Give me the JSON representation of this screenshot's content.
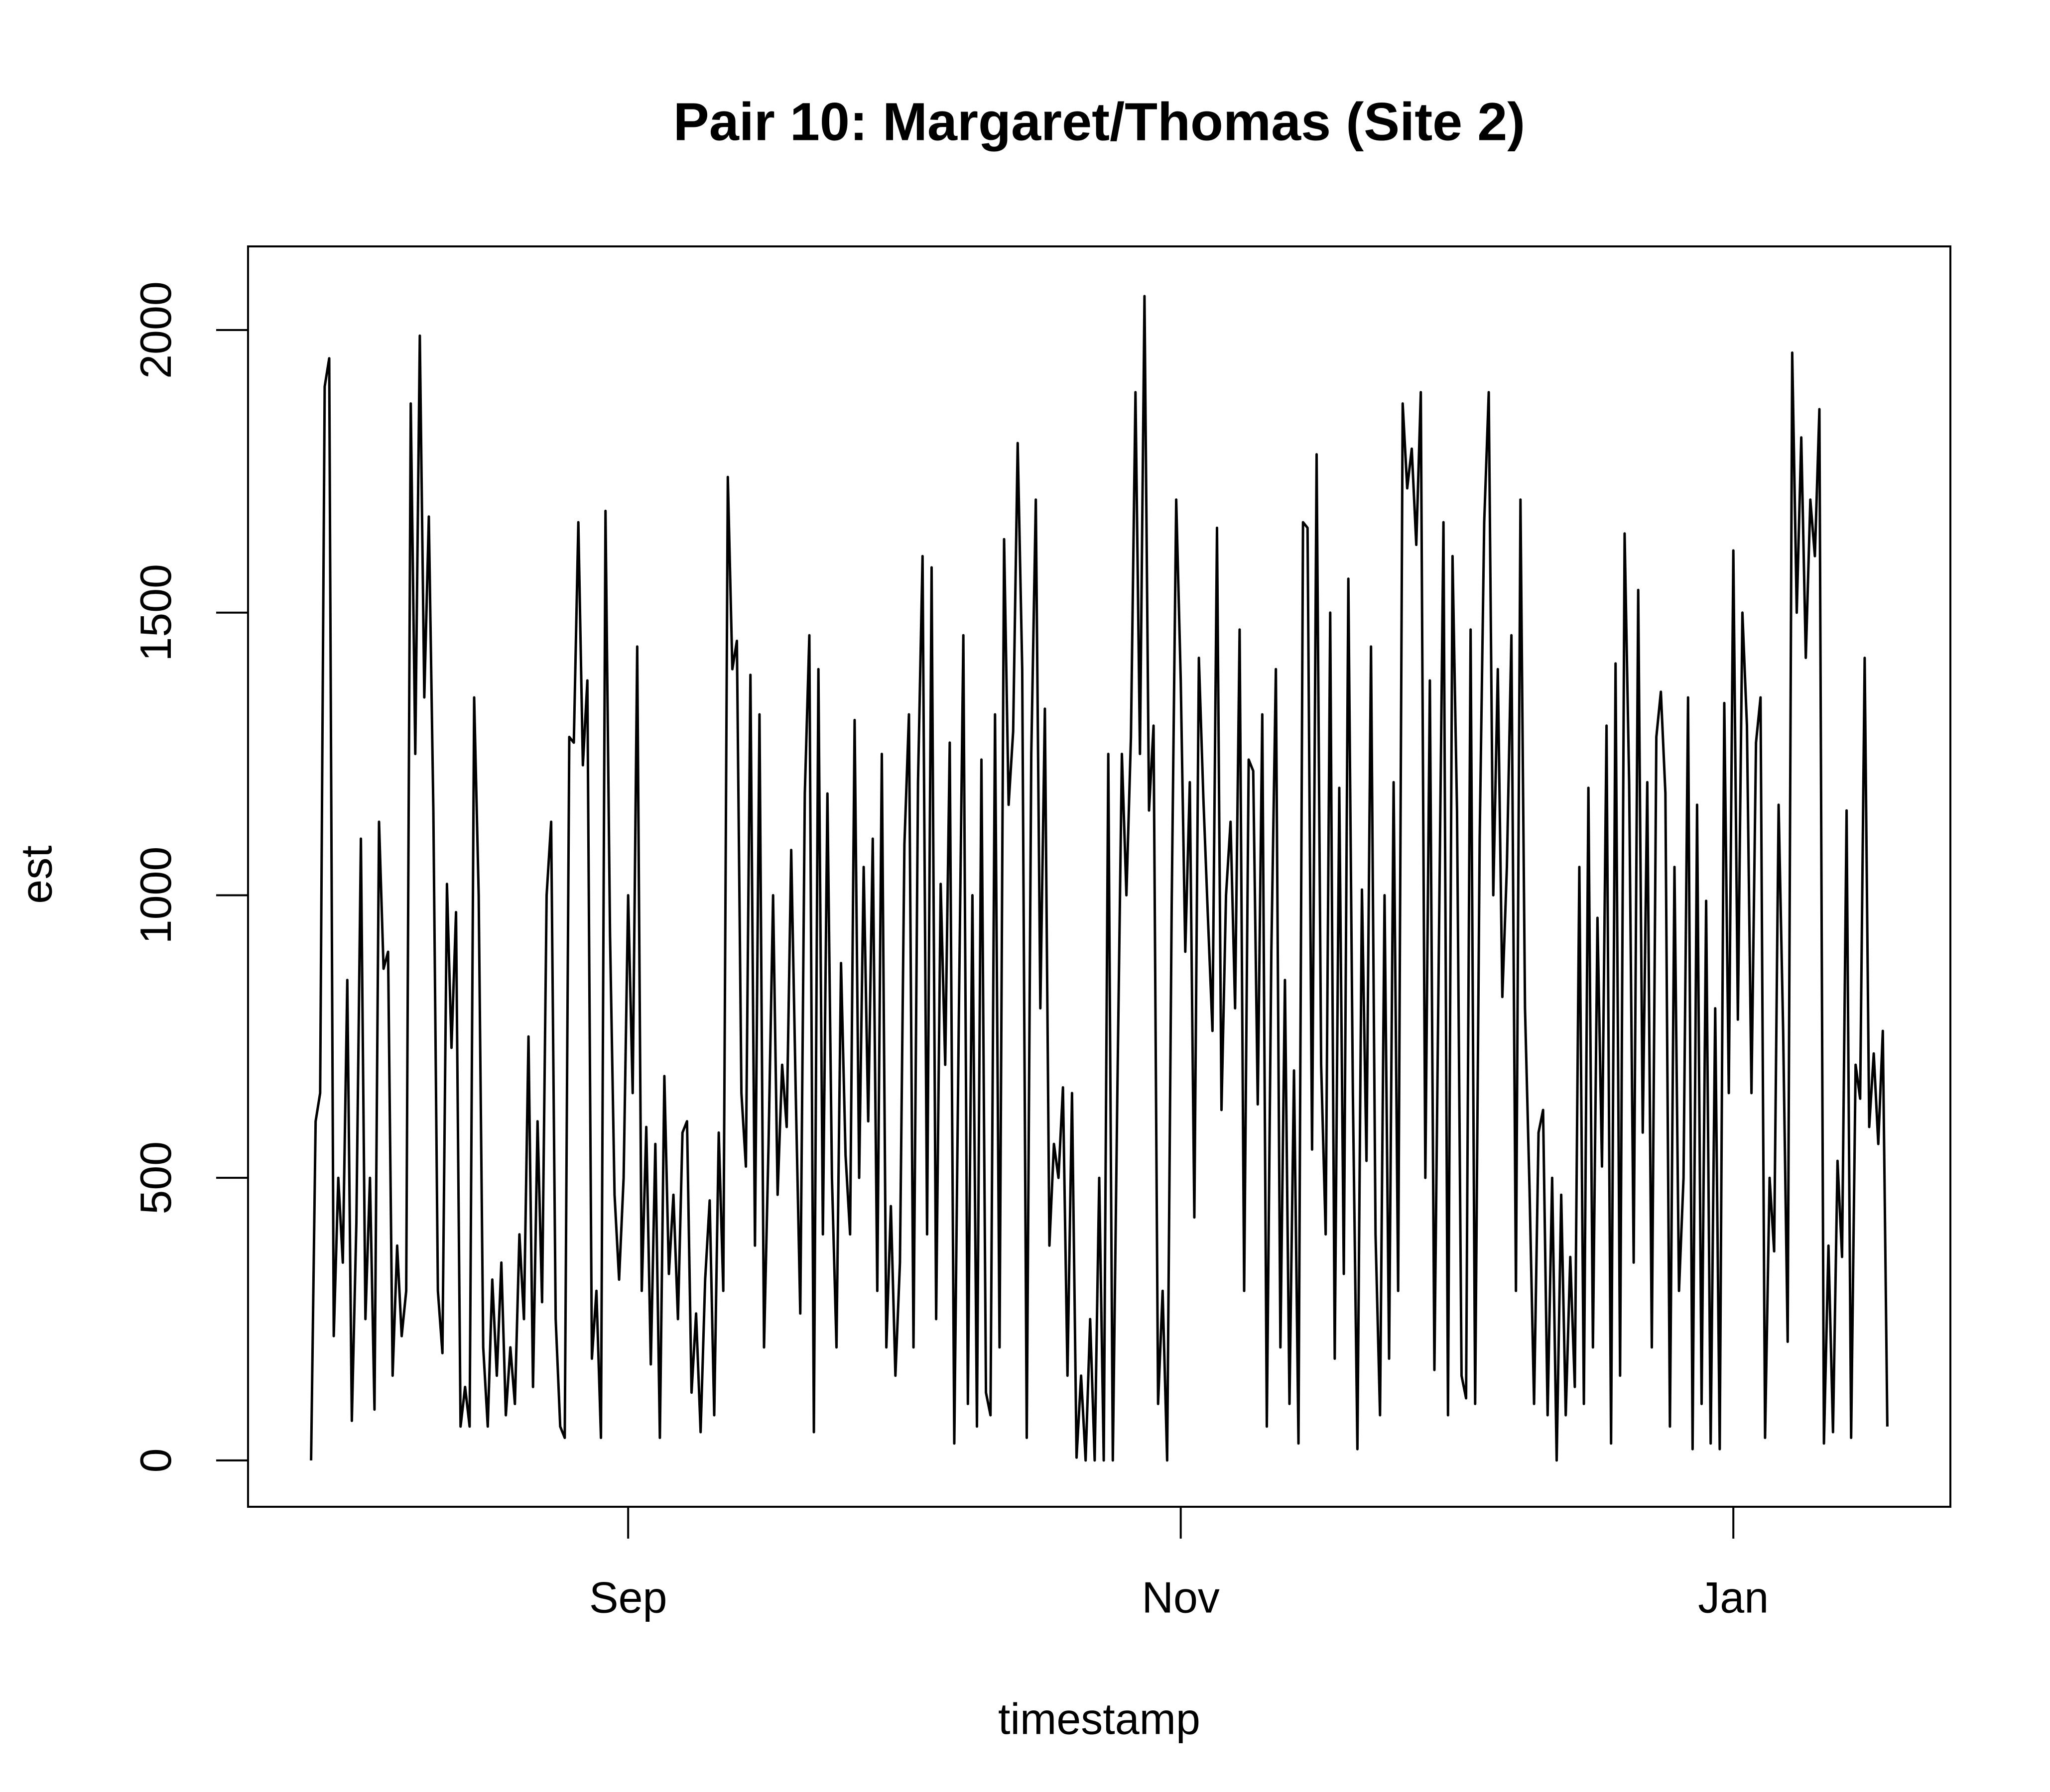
{
  "chart_data": {
    "type": "line",
    "title": "Pair 10: Margaret/Thomas (Site 2)",
    "x_label": "timestamp",
    "y_label": "est",
    "color": "#000000",
    "categories": [
      null,
      null,
      null,
      null,
      null,
      null,
      null,
      null,
      null,
      null,
      null,
      null,
      null,
      null,
      null,
      null,
      null,
      null,
      null,
      null,
      null,
      null,
      null,
      null,
      null,
      null,
      null,
      null,
      null,
      null,
      null,
      null,
      null,
      null,
      null,
      null,
      null,
      null,
      null,
      null,
      null,
      null,
      null,
      null,
      null,
      null,
      null,
      null,
      null,
      null,
      null,
      null,
      null,
      null,
      null,
      null,
      null,
      null,
      null,
      null,
      null,
      null,
      null,
      null,
      null,
      null,
      null,
      null,
      null,
      null,
      "Sep",
      null,
      null,
      null,
      null,
      null,
      null,
      null,
      null,
      null,
      null,
      null,
      null,
      null,
      null,
      null,
      null,
      null,
      null,
      null,
      null,
      null,
      null,
      null,
      null,
      null,
      null,
      null,
      null,
      null,
      null,
      null,
      null,
      null,
      null,
      null,
      null,
      null,
      null,
      null,
      null,
      null,
      null,
      null,
      null,
      null,
      null,
      null,
      null,
      null,
      null,
      null,
      null,
      null,
      null,
      null,
      null,
      null,
      null,
      null,
      null,
      null,
      null,
      null,
      null,
      null,
      null,
      null,
      null,
      null,
      null,
      null,
      null,
      null,
      null,
      null,
      null,
      null,
      null,
      null,
      null,
      null,
      null,
      null,
      null,
      null,
      null,
      null,
      null,
      null,
      null,
      null,
      null,
      null,
      null,
      null,
      null,
      null,
      null,
      null,
      null,
      null,
      null,
      null,
      null,
      null,
      null,
      null,
      null,
      null,
      null,
      null,
      null,
      null,
      null,
      null,
      null,
      null,
      null,
      null,
      null,
      null,
      "Nov",
      null,
      null,
      null,
      null,
      null,
      null,
      null,
      null,
      null,
      null,
      null,
      null,
      null,
      null,
      null,
      null,
      null,
      null,
      null,
      null,
      null,
      null,
      null,
      null,
      null,
      null,
      null,
      null,
      null,
      null,
      null,
      null,
      null,
      null,
      null,
      null,
      null,
      null,
      null,
      null,
      null,
      null,
      null,
      null,
      null,
      null,
      null,
      null,
      null,
      null,
      null,
      null,
      null,
      null,
      null,
      null,
      null,
      null,
      null,
      null,
      null,
      null,
      null,
      null,
      null,
      null,
      null,
      null,
      null,
      null,
      null,
      null,
      null,
      null,
      null,
      null,
      null,
      null,
      null,
      null,
      null,
      null,
      null,
      null,
      null,
      null,
      null,
      null,
      null,
      null,
      null,
      null,
      null,
      null,
      null,
      null,
      null,
      null,
      null,
      null,
      null,
      null,
      null,
      null,
      null,
      null,
      null,
      null,
      null,
      null,
      null,
      null,
      null,
      null,
      null,
      null,
      null,
      null,
      null,
      null,
      null,
      "Jan",
      null,
      null,
      null,
      null,
      null,
      null,
      null,
      null,
      null,
      null,
      null,
      null,
      null,
      null,
      null,
      null,
      null,
      null,
      null,
      null,
      null,
      null,
      null,
      null,
      null,
      null,
      null,
      null,
      null,
      null,
      null,
      null,
      null,
      null
    ],
    "values": [
      0,
      600,
      650,
      1900,
      1950,
      220,
      500,
      350,
      850,
      70,
      420,
      1100,
      250,
      500,
      90,
      1130,
      870,
      900,
      150,
      380,
      220,
      300,
      1870,
      1250,
      1990,
      1350,
      1670,
      1150,
      300,
      190,
      1020,
      730,
      970,
      60,
      130,
      60,
      1350,
      1000,
      200,
      60,
      320,
      150,
      350,
      80,
      200,
      100,
      400,
      250,
      750,
      130,
      600,
      280,
      1000,
      1130,
      250,
      60,
      40,
      1280,
      1270,
      1660,
      1230,
      1380,
      180,
      300,
      40,
      1680,
      930,
      470,
      320,
      500,
      1000,
      650,
      1440,
      300,
      590,
      170,
      560,
      40,
      680,
      330,
      470,
      250,
      580,
      600,
      120,
      260,
      50,
      320,
      460,
      80,
      580,
      300,
      1740,
      1400,
      1450,
      650,
      520,
      1390,
      380,
      1320,
      200,
      560,
      1000,
      470,
      700,
      590,
      1080,
      650,
      260,
      1180,
      1460,
      50,
      1400,
      400,
      1180,
      500,
      200,
      880,
      540,
      400,
      1310,
      500,
      1050,
      600,
      1100,
      300,
      1250,
      200,
      450,
      150,
      350,
      1090,
      1320,
      200,
      1200,
      1600,
      400,
      1580,
      250,
      1020,
      700,
      1270,
      30,
      780,
      1460,
      100,
      1000,
      60,
      1240,
      120,
      80,
      1320,
      200,
      1630,
      1160,
      1290,
      1800,
      1400,
      40,
      1250,
      1700,
      800,
      1330,
      380,
      560,
      500,
      660,
      150,
      650,
      5,
      150,
      0,
      250,
      0,
      500,
      0,
      1250,
      0,
      650,
      1250,
      1000,
      1280,
      1890,
      1250,
      2060,
      1150,
      1300,
      100,
      300,
      0,
      980,
      1700,
      1380,
      900,
      1200,
      430,
      1420,
      1170,
      960,
      760,
      1650,
      620,
      1000,
      1130,
      800,
      1470,
      300,
      1240,
      1220,
      630,
      1320,
      60,
      900,
      1400,
      200,
      850,
      100,
      690,
      30,
      1660,
      1650,
      550,
      1780,
      700,
      400,
      1500,
      180,
      1190,
      330,
      1560,
      650,
      20,
      1010,
      530,
      1440,
      400,
      80,
      1000,
      180,
      1200,
      300,
      1870,
      1720,
      1790,
      1620,
      1890,
      500,
      1380,
      160,
      920,
      1660,
      80,
      1600,
      1150,
      150,
      110,
      1470,
      100,
      1100,
      1660,
      1890,
      1000,
      1400,
      820,
      1050,
      1460,
      300,
      1700,
      800,
      480,
      100,
      580,
      620,
      80,
      500,
      0,
      470,
      80,
      360,
      130,
      1050,
      100,
      1190,
      200,
      960,
      520,
      1300,
      30,
      1410,
      150,
      1640,
      1200,
      350,
      1540,
      580,
      1200,
      200,
      1280,
      1360,
      1180,
      60,
      1050,
      300,
      500,
      1350,
      20,
      1160,
      100,
      990,
      30,
      800,
      20,
      1340,
      650,
      1610,
      780,
      1500,
      1300,
      650,
      1270,
      1350,
      40,
      500,
      370,
      1160,
      760,
      210,
      1960,
      1500,
      1810,
      1420,
      1700,
      1600,
      1860,
      30,
      380,
      50,
      530,
      360,
      1150,
      40,
      700,
      640,
      1420,
      590,
      720,
      560,
      760,
      60
    ],
    "ylim": [
      -82,
      2148
    ],
    "yticks": [
      0,
      500,
      1000,
      1500,
      2000
    ],
    "grid": false
  }
}
